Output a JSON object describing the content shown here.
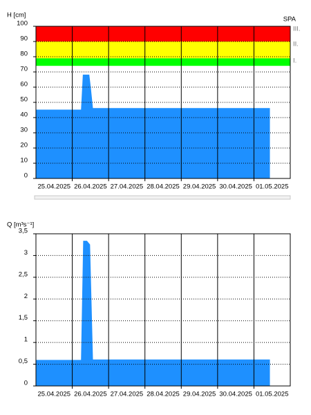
{
  "station": "SPA",
  "chart_data": [
    {
      "type": "area",
      "y_label": "H [cm]",
      "categories": [
        "25.04.2025",
        "26.04.2025",
        "27.04.2025",
        "28.04.2025",
        "29.04.2025",
        "30.04.2025",
        "01.05.2025"
      ],
      "xlim": [
        0,
        7
      ],
      "ylim": [
        0,
        100
      ],
      "yticks": [
        0,
        10,
        20,
        30,
        40,
        50,
        60,
        70,
        80,
        90,
        100
      ],
      "bands": [
        {
          "label": "I.",
          "from": 74,
          "to": 79,
          "color": "#00ff00"
        },
        {
          "label": "II.",
          "from": 79,
          "to": 90,
          "color": "#ffff00"
        },
        {
          "label": "III.",
          "from": 90,
          "to": 100,
          "color": "#ff0000"
        }
      ],
      "series": [
        {
          "color": "#1e90ff",
          "x": [
            0,
            1.25,
            1.3,
            1.46,
            1.5,
            1.56,
            2,
            3,
            4,
            5,
            6,
            6.43
          ],
          "values": [
            45,
            45,
            68,
            68,
            60,
            46,
            46,
            46,
            46,
            46,
            46,
            46
          ]
        }
      ],
      "grid": true
    },
    {
      "type": "area",
      "y_label": "Q [m³s⁻¹]",
      "categories": [
        "25.04.2025",
        "26.04.2025",
        "27.04.2025",
        "28.04.2025",
        "29.04.2025",
        "30.04.2025",
        "01.05.2025"
      ],
      "xlim": [
        0,
        7
      ],
      "ylim": [
        0,
        3.5
      ],
      "yticks": [
        0,
        {
          "value": 0.5,
          "label": "0,5"
        },
        1,
        {
          "value": 1.5,
          "label": "1,5"
        },
        2,
        {
          "value": 2.5,
          "label": "2,5"
        },
        3,
        {
          "value": 3.5,
          "label": "3,5"
        }
      ],
      "series": [
        {
          "color": "#1e90ff",
          "x": [
            0,
            1.25,
            1.31,
            1.4,
            1.48,
            1.56,
            2,
            3,
            4,
            5,
            6,
            6.43
          ],
          "values": [
            0.59,
            0.59,
            3.33,
            3.33,
            3.25,
            0.6,
            0.6,
            0.6,
            0.6,
            0.6,
            0.6,
            0.6
          ]
        }
      ],
      "grid": true
    }
  ]
}
